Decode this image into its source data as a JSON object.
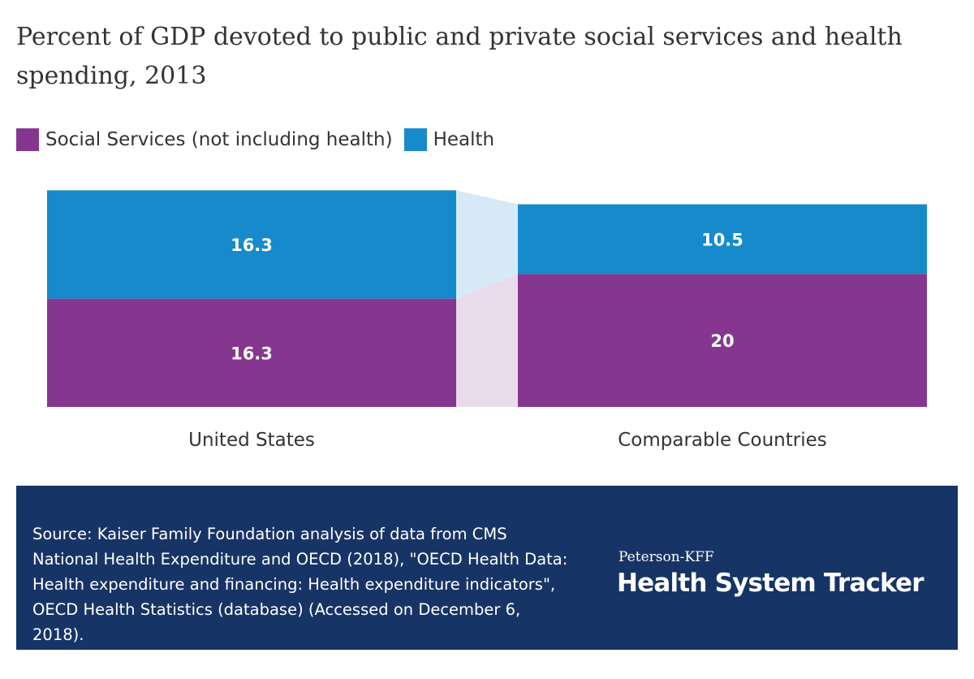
{
  "chart_data": {
    "type": "bar",
    "title": "Percent of GDP devoted to public and private social services and health spending, 2013",
    "stacked": true,
    "categories": [
      "United States",
      "Comparable Countries"
    ],
    "series": [
      {
        "name": "Social Services (not including health)",
        "color": "#85378f",
        "values": [
          16.3,
          20
        ]
      },
      {
        "name": "Health",
        "color": "#178acb",
        "values": [
          16.3,
          10.5
        ]
      }
    ],
    "value_labels": {
      "Social Services (not including health)": [
        "16.3",
        "20"
      ],
      "Health": [
        "16.3",
        "10.5"
      ]
    },
    "legend": "top-left",
    "grid": false
  },
  "footer": {
    "source": "Source: Kaiser Family Foundation analysis of data from CMS National Health Expenditure and OECD (2018), \"OECD Health Data: Health expenditure and financing: Health expenditure indicators\", OECD Health Statistics (database) (Accessed on December 6, 2018).",
    "brand_top": "Peterson-KFF",
    "brand_main": "Health System Tracker",
    "background_color": "#173466"
  }
}
